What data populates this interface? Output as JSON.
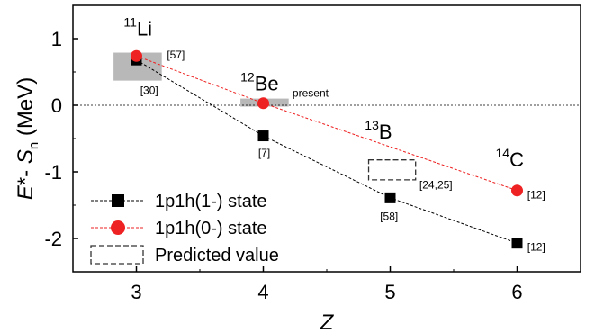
{
  "chart_data": {
    "type": "scatter",
    "xlabel": "Z",
    "ylabel": "E*- S_n (MeV)",
    "xlim": [
      2.5,
      6.5
    ],
    "ylim": [
      -2.5,
      1.5
    ],
    "xticks": [
      "3",
      "4",
      "5",
      "6"
    ],
    "yticks": [
      "1",
      "0",
      "-1",
      "-2"
    ],
    "legend_position": "bottom-left",
    "series": [
      {
        "name": "1p1h(1-) state",
        "color": "#000000",
        "marker": "square",
        "line": "dashed",
        "x": [
          3,
          4,
          5,
          6
        ],
        "y": [
          0.68,
          -0.46,
          -1.39,
          -2.07
        ]
      },
      {
        "name": "1p1h(0-) state",
        "color": "#ee2222",
        "marker": "circle",
        "line": "dashed",
        "x": [
          3,
          4,
          6
        ],
        "y": [
          0.74,
          0.03,
          -1.28
        ]
      }
    ],
    "predicted_label": "Predicted value",
    "uncertainty_boxes": [
      {
        "x_range": [
          2.82,
          3.2
        ],
        "y_range": [
          0.37,
          0.79
        ],
        "style": "gray"
      },
      {
        "x_range": [
          3.82,
          4.2
        ],
        "y_range": [
          -0.02,
          0.1
        ],
        "style": "gray"
      },
      {
        "x_range": [
          4.83,
          5.2
        ],
        "y_range": [
          -1.12,
          -0.82
        ],
        "style": "dashed"
      }
    ],
    "nuclei": [
      {
        "mass": "11",
        "symbol": "Li",
        "x": 2.9,
        "y": 1.05
      },
      {
        "mass": "12",
        "symbol": "Be",
        "x": 3.82,
        "y": 0.22
      },
      {
        "mass": "13",
        "symbol": "B",
        "x": 4.8,
        "y": -0.5
      },
      {
        "mass": "14",
        "symbol": "C",
        "x": 5.83,
        "y": -0.92
      }
    ],
    "annotations": [
      {
        "text": "[57]",
        "x": 3.24,
        "y": 0.7
      },
      {
        "text": "[30]",
        "x": 3.03,
        "y": 0.17
      },
      {
        "text": "present",
        "x": 4.23,
        "y": 0.13
      },
      {
        "text": "[7]",
        "x": 3.96,
        "y": -0.77
      },
      {
        "text": "[24,25]",
        "x": 5.23,
        "y": -1.25
      },
      {
        "text": "[58]",
        "x": 4.92,
        "y": -1.72
      },
      {
        "text": "[12]",
        "x": 6.08,
        "y": -1.4
      },
      {
        "text": "[12]",
        "x": 6.08,
        "y": -2.18
      }
    ]
  }
}
